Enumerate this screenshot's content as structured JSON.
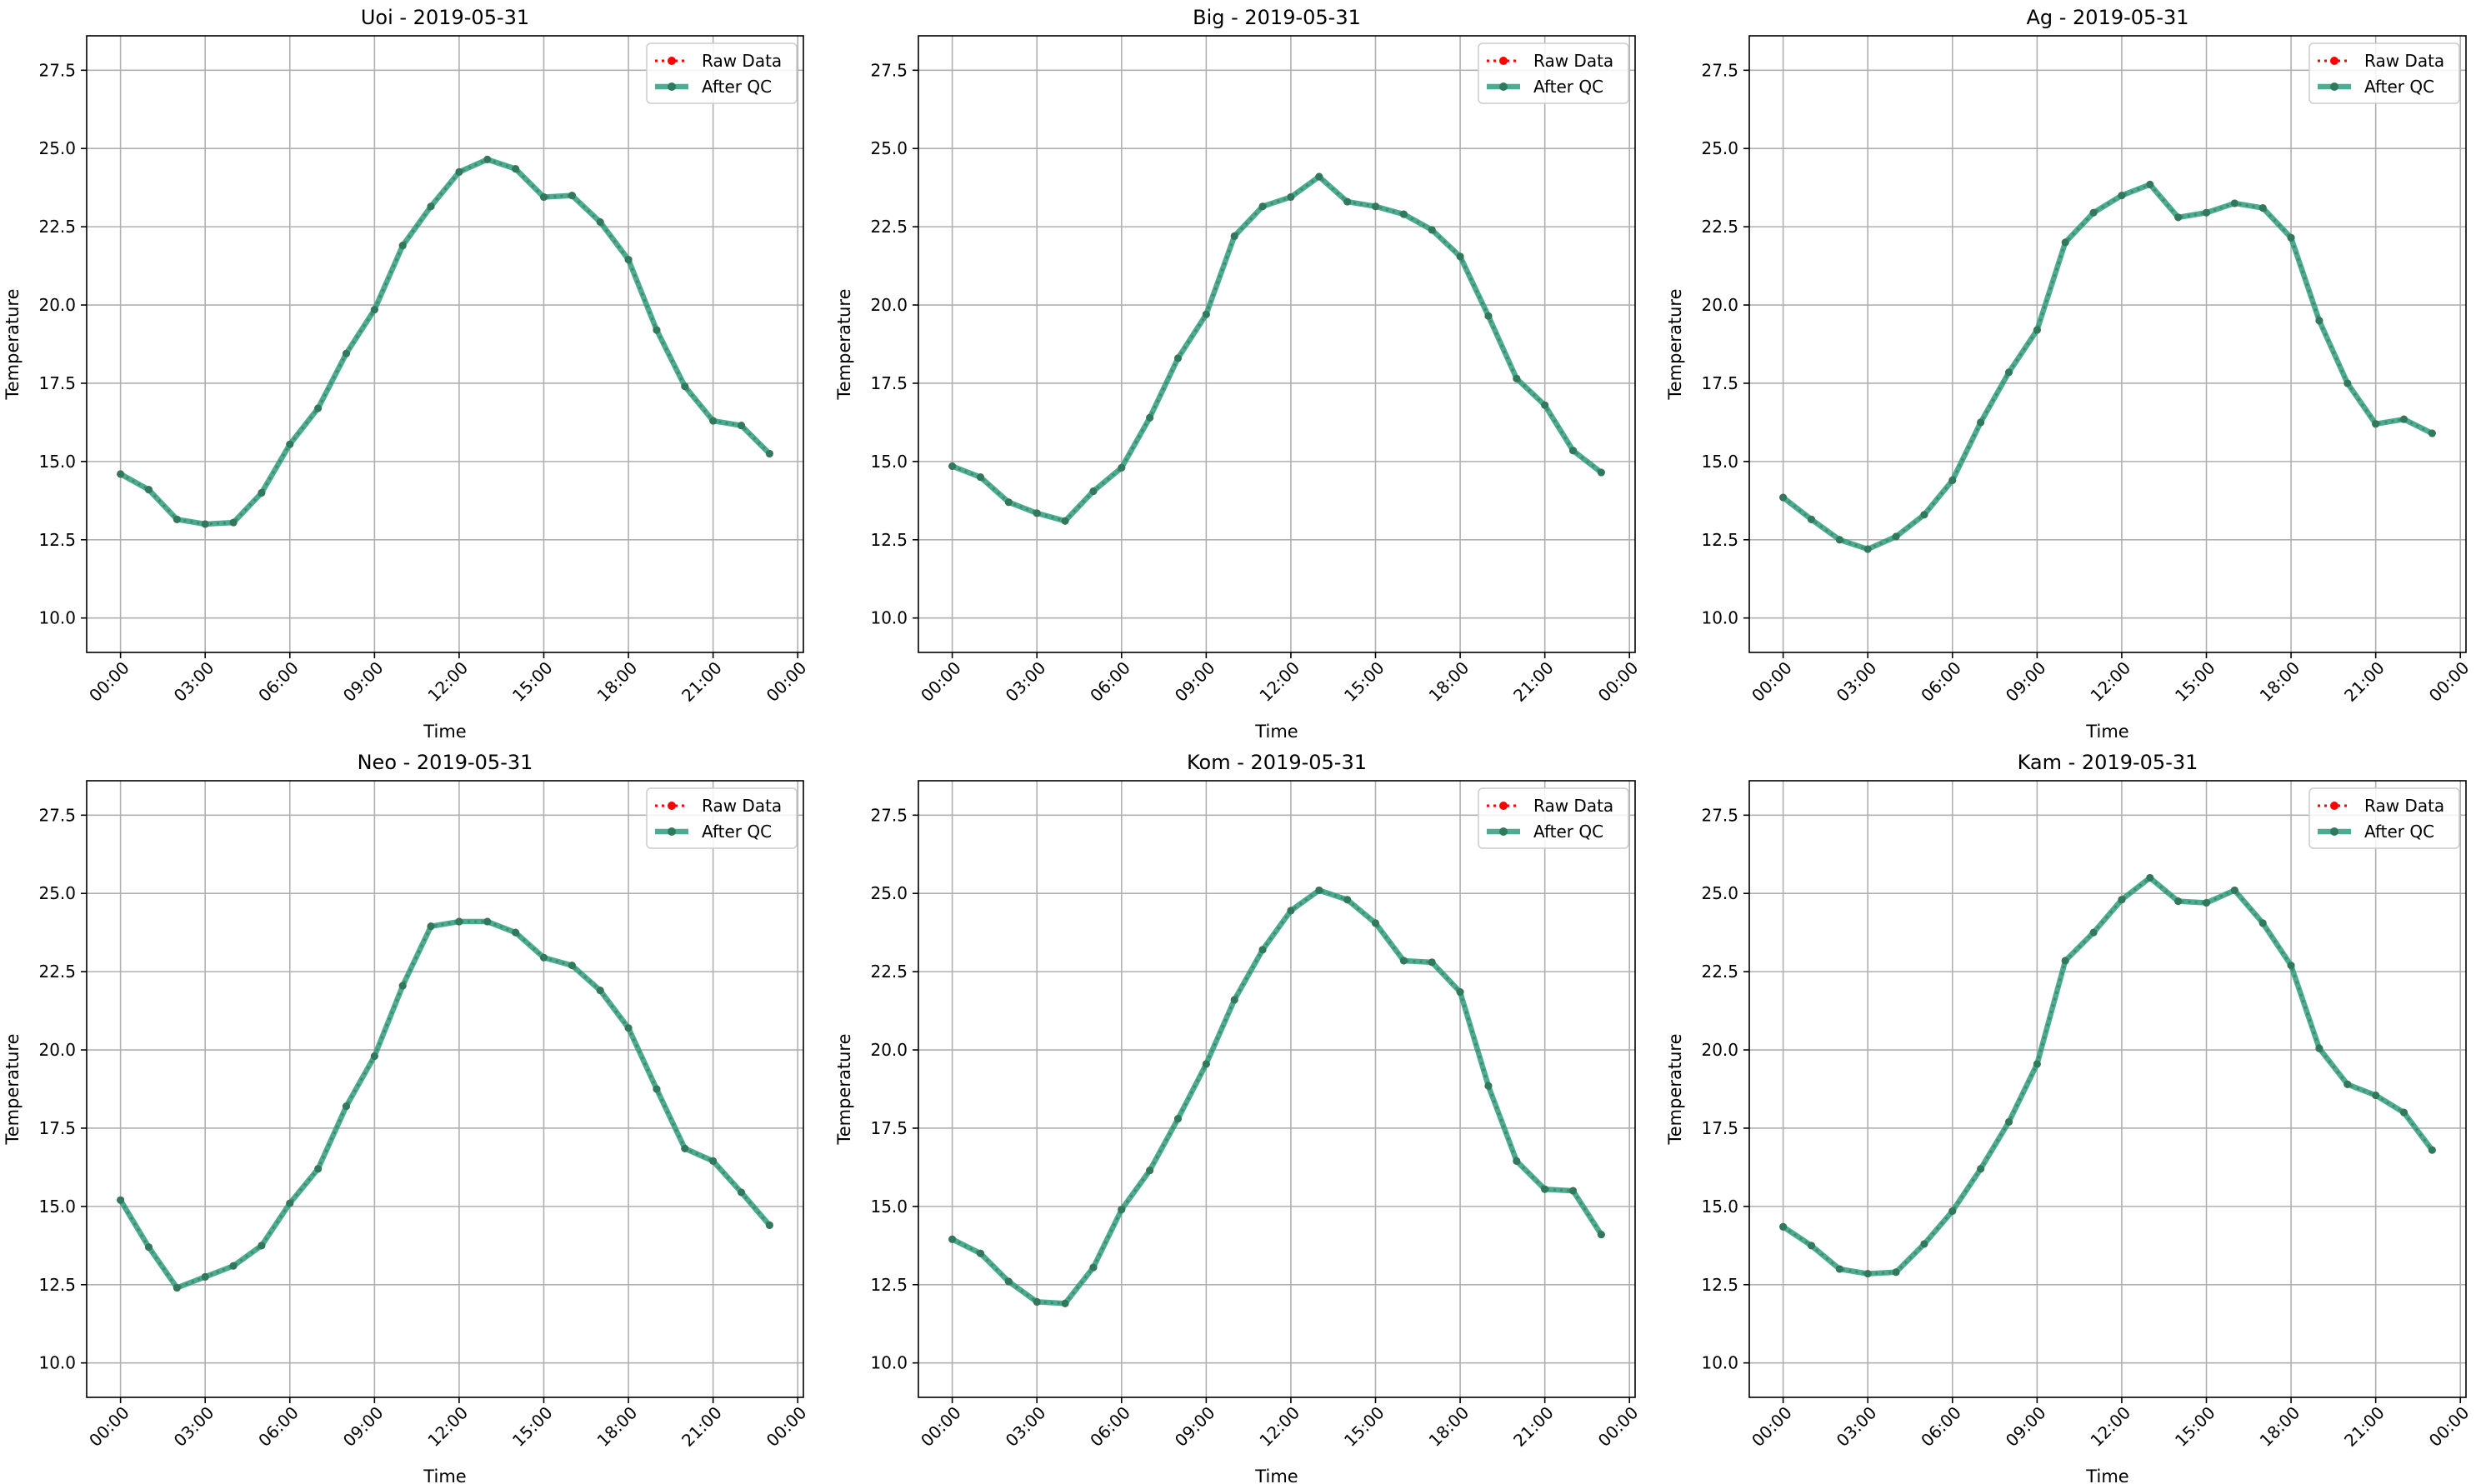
{
  "figure": {
    "colors": {
      "raw": "#ff0000",
      "qc": "#2a9d7c",
      "qc_marker": "#2f7a5c",
      "grid": "#b0b0b0",
      "axis": "#000000",
      "legend_border": "#cccccc"
    }
  },
  "chart_data": [
    {
      "type": "line",
      "title": "Uoi - 2019-05-31",
      "xlabel": "Time",
      "ylabel": "Temperature",
      "x_hours": [
        0,
        1,
        2,
        3,
        4,
        5,
        6,
        7,
        8,
        9,
        10,
        11,
        12,
        13,
        14,
        15,
        16,
        17,
        18,
        19,
        20,
        21,
        22,
        23
      ],
      "xlim": [
        -1.2,
        24.2
      ],
      "ylim": [
        8.9,
        28.6
      ],
      "xticks": [
        "00:00",
        "03:00",
        "06:00",
        "09:00",
        "12:00",
        "15:00",
        "18:00",
        "21:00",
        "00:00"
      ],
      "yticks": [
        "10.0",
        "12.5",
        "15.0",
        "17.5",
        "20.0",
        "22.5",
        "25.0",
        "27.5"
      ],
      "grid": true,
      "legend_position": "top-right",
      "series": [
        {
          "name": "Raw Data",
          "values": [
            14.6,
            14.1,
            13.15,
            13.0,
            13.05,
            14.0,
            15.55,
            16.7,
            18.45,
            19.85,
            21.9,
            23.15,
            24.25,
            24.65,
            24.35,
            23.45,
            23.5,
            22.65,
            21.45,
            19.2,
            17.4,
            16.3,
            16.15,
            15.25
          ]
        },
        {
          "name": "After QC",
          "values": [
            14.6,
            14.1,
            13.15,
            13.0,
            13.05,
            14.0,
            15.55,
            16.7,
            18.45,
            19.85,
            21.9,
            23.15,
            24.25,
            24.65,
            24.35,
            23.45,
            23.5,
            22.65,
            21.45,
            19.2,
            17.4,
            16.3,
            16.15,
            15.25
          ]
        }
      ]
    },
    {
      "type": "line",
      "title": "Big - 2019-05-31",
      "xlabel": "Time",
      "ylabel": "Temperature",
      "x_hours": [
        0,
        1,
        2,
        3,
        4,
        5,
        6,
        7,
        8,
        9,
        10,
        11,
        12,
        13,
        14,
        15,
        16,
        17,
        18,
        19,
        20,
        21,
        22,
        23
      ],
      "xlim": [
        -1.2,
        24.2
      ],
      "ylim": [
        8.9,
        28.6
      ],
      "xticks": [
        "00:00",
        "03:00",
        "06:00",
        "09:00",
        "12:00",
        "15:00",
        "18:00",
        "21:00",
        "00:00"
      ],
      "yticks": [
        "10.0",
        "12.5",
        "15.0",
        "17.5",
        "20.0",
        "22.5",
        "25.0",
        "27.5"
      ],
      "grid": true,
      "legend_position": "top-right",
      "series": [
        {
          "name": "Raw Data",
          "values": [
            14.85,
            14.5,
            13.7,
            13.35,
            13.1,
            14.05,
            14.8,
            16.4,
            18.3,
            19.7,
            22.2,
            23.15,
            23.45,
            24.1,
            23.3,
            23.15,
            22.9,
            22.4,
            21.55,
            19.65,
            17.65,
            16.8,
            15.35,
            14.65
          ]
        },
        {
          "name": "After QC",
          "values": [
            14.85,
            14.5,
            13.7,
            13.35,
            13.1,
            14.05,
            14.8,
            16.4,
            18.3,
            19.7,
            22.2,
            23.15,
            23.45,
            24.1,
            23.3,
            23.15,
            22.9,
            22.4,
            21.55,
            19.65,
            17.65,
            16.8,
            15.35,
            14.65
          ]
        }
      ]
    },
    {
      "type": "line",
      "title": "Ag - 2019-05-31",
      "xlabel": "Time",
      "ylabel": "Temperature",
      "x_hours": [
        0,
        1,
        2,
        3,
        4,
        5,
        6,
        7,
        8,
        9,
        10,
        11,
        12,
        13,
        14,
        15,
        16,
        17,
        18,
        19,
        20,
        21,
        22,
        23
      ],
      "xlim": [
        -1.2,
        24.2
      ],
      "ylim": [
        8.9,
        28.6
      ],
      "xticks": [
        "00:00",
        "03:00",
        "06:00",
        "09:00",
        "12:00",
        "15:00",
        "18:00",
        "21:00",
        "00:00"
      ],
      "yticks": [
        "10.0",
        "12.5",
        "15.0",
        "17.5",
        "20.0",
        "22.5",
        "25.0",
        "27.5"
      ],
      "grid": true,
      "legend_position": "top-right",
      "series": [
        {
          "name": "Raw Data",
          "values": [
            13.85,
            13.15,
            12.5,
            12.2,
            12.6,
            13.3,
            14.4,
            16.25,
            17.85,
            19.2,
            22.0,
            22.95,
            23.5,
            23.85,
            22.8,
            22.95,
            23.25,
            23.1,
            22.15,
            19.5,
            17.5,
            16.2,
            16.35,
            15.9
          ]
        },
        {
          "name": "After QC",
          "values": [
            13.85,
            13.15,
            12.5,
            12.2,
            12.6,
            13.3,
            14.4,
            16.25,
            17.85,
            19.2,
            22.0,
            22.95,
            23.5,
            23.85,
            22.8,
            22.95,
            23.25,
            23.1,
            22.15,
            19.5,
            17.5,
            16.2,
            16.35,
            15.9
          ]
        }
      ]
    },
    {
      "type": "line",
      "title": "Neo - 2019-05-31",
      "xlabel": "Time",
      "ylabel": "Temperature",
      "x_hours": [
        0,
        1,
        2,
        3,
        4,
        5,
        6,
        7,
        8,
        9,
        10,
        11,
        12,
        13,
        14,
        15,
        16,
        17,
        18,
        19,
        20,
        21,
        22,
        23
      ],
      "xlim": [
        -1.2,
        24.2
      ],
      "ylim": [
        8.9,
        28.6
      ],
      "xticks": [
        "00:00",
        "03:00",
        "06:00",
        "09:00",
        "12:00",
        "15:00",
        "18:00",
        "21:00",
        "00:00"
      ],
      "yticks": [
        "10.0",
        "12.5",
        "15.0",
        "17.5",
        "20.0",
        "22.5",
        "25.0",
        "27.5"
      ],
      "grid": true,
      "legend_position": "top-right",
      "series": [
        {
          "name": "Raw Data",
          "values": [
            15.2,
            13.7,
            12.4,
            12.75,
            13.1,
            13.75,
            15.1,
            16.2,
            18.2,
            19.8,
            22.05,
            23.95,
            24.1,
            24.1,
            23.75,
            22.95,
            22.7,
            21.9,
            20.7,
            18.75,
            16.85,
            16.45,
            15.45,
            14.4
          ]
        },
        {
          "name": "After QC",
          "values": [
            15.2,
            13.7,
            12.4,
            12.75,
            13.1,
            13.75,
            15.1,
            16.2,
            18.2,
            19.8,
            22.05,
            23.95,
            24.1,
            24.1,
            23.75,
            22.95,
            22.7,
            21.9,
            20.7,
            18.75,
            16.85,
            16.45,
            15.45,
            14.4
          ]
        }
      ]
    },
    {
      "type": "line",
      "title": "Kom - 2019-05-31",
      "xlabel": "Time",
      "ylabel": "Temperature",
      "x_hours": [
        0,
        1,
        2,
        3,
        4,
        5,
        6,
        7,
        8,
        9,
        10,
        11,
        12,
        13,
        14,
        15,
        16,
        17,
        18,
        19,
        20,
        21,
        22,
        23
      ],
      "xlim": [
        -1.2,
        24.2
      ],
      "ylim": [
        8.9,
        28.6
      ],
      "xticks": [
        "00:00",
        "03:00",
        "06:00",
        "09:00",
        "12:00",
        "15:00",
        "18:00",
        "21:00",
        "00:00"
      ],
      "yticks": [
        "10.0",
        "12.5",
        "15.0",
        "17.5",
        "20.0",
        "22.5",
        "25.0",
        "27.5"
      ],
      "grid": true,
      "legend_position": "top-right",
      "series": [
        {
          "name": "Raw Data",
          "values": [
            13.95,
            13.5,
            12.6,
            11.95,
            11.9,
            13.05,
            14.9,
            16.15,
            17.8,
            19.55,
            21.6,
            23.2,
            24.45,
            25.1,
            24.8,
            24.05,
            22.85,
            22.8,
            21.85,
            18.85,
            16.45,
            15.55,
            15.5,
            14.1
          ]
        },
        {
          "name": "After QC",
          "values": [
            13.95,
            13.5,
            12.6,
            11.95,
            11.9,
            13.05,
            14.9,
            16.15,
            17.8,
            19.55,
            21.6,
            23.2,
            24.45,
            25.1,
            24.8,
            24.05,
            22.85,
            22.8,
            21.85,
            18.85,
            16.45,
            15.55,
            15.5,
            14.1
          ]
        }
      ]
    },
    {
      "type": "line",
      "title": "Kam - 2019-05-31",
      "xlabel": "Time",
      "ylabel": "Temperature",
      "x_hours": [
        0,
        1,
        2,
        3,
        4,
        5,
        6,
        7,
        8,
        9,
        10,
        11,
        12,
        13,
        14,
        15,
        16,
        17,
        18,
        19,
        20,
        21,
        22,
        23
      ],
      "xlim": [
        -1.2,
        24.2
      ],
      "ylim": [
        8.9,
        28.6
      ],
      "xticks": [
        "00:00",
        "03:00",
        "06:00",
        "09:00",
        "12:00",
        "15:00",
        "18:00",
        "21:00",
        "00:00"
      ],
      "yticks": [
        "10.0",
        "12.5",
        "15.0",
        "17.5",
        "20.0",
        "22.5",
        "25.0",
        "27.5"
      ],
      "grid": true,
      "legend_position": "top-right",
      "series": [
        {
          "name": "Raw Data",
          "values": [
            14.35,
            13.75,
            13.0,
            12.85,
            12.9,
            13.8,
            14.85,
            16.2,
            17.7,
            19.55,
            22.85,
            23.75,
            24.8,
            25.5,
            24.75,
            24.7,
            25.1,
            24.05,
            22.7,
            20.05,
            18.9,
            18.55,
            18.0,
            16.8
          ]
        },
        {
          "name": "After QC",
          "values": [
            14.35,
            13.75,
            13.0,
            12.85,
            12.9,
            13.8,
            14.85,
            16.2,
            17.7,
            19.55,
            22.85,
            23.75,
            24.8,
            25.5,
            24.75,
            24.7,
            25.1,
            24.05,
            22.7,
            20.05,
            18.9,
            18.55,
            18.0,
            16.8
          ]
        }
      ]
    }
  ]
}
